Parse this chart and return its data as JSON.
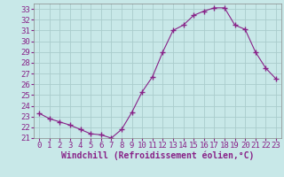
{
  "x": [
    0,
    1,
    2,
    3,
    4,
    5,
    6,
    7,
    8,
    9,
    10,
    11,
    12,
    13,
    14,
    15,
    16,
    17,
    18,
    19,
    20,
    21,
    22,
    23
  ],
  "y": [
    23.3,
    22.8,
    22.5,
    22.2,
    21.8,
    21.4,
    21.3,
    21.0,
    21.8,
    23.4,
    25.3,
    26.7,
    29.0,
    31.0,
    31.5,
    32.4,
    32.8,
    33.1,
    33.1,
    31.5,
    31.1,
    29.0,
    27.5,
    26.5
  ],
  "line_color": "#882288",
  "marker": "+",
  "marker_size": 4,
  "bg_color": "#c8e8e8",
  "grid_color": "#aacccc",
  "xlabel": "Windchill (Refroidissement éolien,°C)",
  "xlabel_color": "#882288",
  "xlabel_fontsize": 7,
  "tick_label_color": "#882288",
  "tick_fontsize": 6.5,
  "ylim": [
    21,
    33.5
  ],
  "yticks": [
    21,
    22,
    23,
    24,
    25,
    26,
    27,
    28,
    29,
    30,
    31,
    32,
    33
  ],
  "xticks": [
    0,
    1,
    2,
    3,
    4,
    5,
    6,
    7,
    8,
    9,
    10,
    11,
    12,
    13,
    14,
    15,
    16,
    17,
    18,
    19,
    20,
    21,
    22,
    23
  ]
}
